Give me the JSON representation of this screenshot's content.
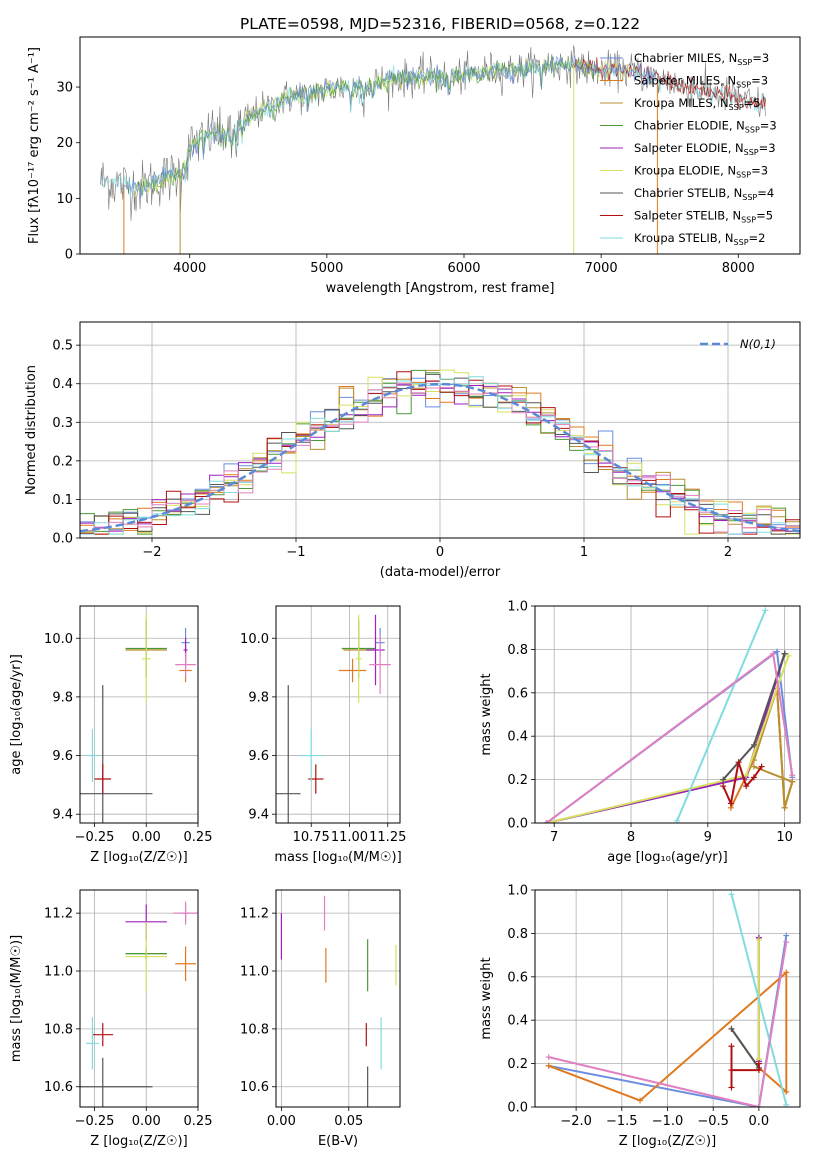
{
  "figure_title": "PLATE=0598, MJD=52316, FIBERID=0568, z=0.122",
  "colors": {
    "Chabrier MILES": "#6a8ee0",
    "Salpeter MILES": "#e07a20",
    "Kroupa MILES": "#b89030",
    "Chabrier ELODIE": "#4a9a3a",
    "Salpeter ELODIE": "#a020c0",
    "Kroupa ELODIE": "#d8e060",
    "Chabrier STELIB": "#555555",
    "Salpeter STELIB": "#b01010",
    "Kroupa STELIB": "#80dce0",
    "pink": "#e080c0",
    "gaussian": "#5a8ad8",
    "grid": "#b0b0b0"
  },
  "chart_data": [
    {
      "id": "spectrum",
      "type": "line",
      "xlabel": "wavelength [Angstrom, rest frame]",
      "ylabel": "Flux [f_λ10^-17 erg cm^-2 s^-1 A^-1]",
      "xlim": [
        3200,
        8450
      ],
      "ylim": [
        0,
        39
      ],
      "xticks": [
        4000,
        5000,
        6000,
        7000,
        8000
      ],
      "yticks": [
        0,
        10,
        20,
        30
      ],
      "grid": false,
      "legend_position": "top-right",
      "legend": [
        {
          "label": "Chabrier MILES",
          "nssp": "3"
        },
        {
          "label": "Salpeter MILES",
          "nssp": "3"
        },
        {
          "label": "Kroupa MILES",
          "nssp": "5"
        },
        {
          "label": "Chabrier ELODIE",
          "nssp": "3"
        },
        {
          "label": "Salpeter ELODIE",
          "nssp": "3"
        },
        {
          "label": "Kroupa ELODIE",
          "nssp": "3"
        },
        {
          "label": "Chabrier STELIB",
          "nssp": "4"
        },
        {
          "label": "Salpeter STELIB",
          "nssp": "5"
        },
        {
          "label": "Kroupa STELIB",
          "nssp": "2"
        }
      ],
      "continuum": [
        [
          3350,
          13.2
        ],
        [
          3500,
          12.5
        ],
        [
          3650,
          12
        ],
        [
          3800,
          13.5
        ],
        [
          3900,
          14
        ],
        [
          3950,
          16
        ],
        [
          4000,
          19
        ],
        [
          4100,
          21
        ],
        [
          4200,
          22
        ],
        [
          4300,
          21.5
        ],
        [
          4400,
          24
        ],
        [
          4500,
          25.5
        ],
        [
          4600,
          26.5
        ],
        [
          4700,
          28
        ],
        [
          4800,
          28.5
        ],
        [
          4900,
          29
        ],
        [
          5000,
          29.5
        ],
        [
          5100,
          30
        ],
        [
          5200,
          30
        ],
        [
          5300,
          30.5
        ],
        [
          5400,
          31
        ],
        [
          5500,
          31.5
        ],
        [
          5600,
          31.5
        ],
        [
          5700,
          32
        ],
        [
          5800,
          32
        ],
        [
          5900,
          31.5
        ],
        [
          6000,
          32
        ],
        [
          6100,
          32.5
        ],
        [
          6200,
          33
        ],
        [
          6300,
          33
        ],
        [
          6400,
          33
        ],
        [
          6500,
          33.5
        ],
        [
          6600,
          34
        ],
        [
          6700,
          34
        ],
        [
          6800,
          34
        ],
        [
          6900,
          33.5
        ],
        [
          7000,
          33
        ],
        [
          7100,
          33
        ],
        [
          7200,
          33
        ],
        [
          7300,
          32.5
        ],
        [
          7400,
          31.5
        ],
        [
          7500,
          31
        ],
        [
          7600,
          30
        ],
        [
          7700,
          29.5
        ],
        [
          7800,
          29
        ],
        [
          7900,
          28.5
        ],
        [
          8000,
          28
        ],
        [
          8100,
          27
        ],
        [
          8200,
          27
        ]
      ],
      "notes": "noisy observed spectrum with overplotted SSP model fits"
    },
    {
      "id": "residuals",
      "type": "line",
      "xlabel": "(data-model)/error",
      "ylabel": "Normed distribution",
      "xlim": [
        -2.5,
        2.5
      ],
      "ylim": [
        0,
        0.56
      ],
      "xticks": [
        -2,
        -1,
        0,
        1,
        2
      ],
      "yticks": [
        0.0,
        0.1,
        0.2,
        0.3,
        0.4,
        0.5
      ],
      "grid": true,
      "legend_position": "top-right",
      "legend": [
        {
          "label": "N(0,1)"
        }
      ],
      "series_style": "step histograms of normalized residuals, one per model",
      "gaussian": {
        "mean": 0,
        "sigma": 1
      }
    },
    {
      "id": "age_vs_Z",
      "type": "scatter",
      "xlabel": "Z [log10(Z/Z☉)]",
      "ylabel": "age  [log10(age/yr)]",
      "xlim": [
        -0.32,
        0.25
      ],
      "ylim": [
        9.37,
        10.11
      ],
      "xticks": [
        -0.25,
        0.0,
        0.25
      ],
      "yticks": [
        9.4,
        9.6,
        9.8,
        10.0
      ],
      "grid": true,
      "points": [
        {
          "model": "Chabrier MILES",
          "x": 0.19,
          "y": 9.985,
          "xerr": 0.02,
          "yerr": 0.05
        },
        {
          "model": "Salpeter MILES",
          "x": 0.19,
          "y": 9.89,
          "xerr": 0.03,
          "yerr": 0.04
        },
        {
          "model": "Kroupa MILES",
          "x": 0.0,
          "y": 9.96,
          "xerr": 0.1,
          "yerr": 0.01
        },
        {
          "model": "Chabrier ELODIE",
          "x": 0.0,
          "y": 9.965,
          "xerr": 0.1,
          "yerr": 0.1
        },
        {
          "model": "Salpeter ELODIE",
          "x": 0.19,
          "y": 9.96,
          "xerr": 0.01,
          "yerr": 0.04
        },
        {
          "model": "Kroupa ELODIE",
          "x": 0.0,
          "y": 9.93,
          "xerr": 0.02,
          "yerr": 0.15
        },
        {
          "model": "Chabrier STELIB",
          "x": -0.21,
          "y": 9.47,
          "xerr": 0.24,
          "yerr": 0.37
        },
        {
          "model": "Salpeter STELIB",
          "x": -0.21,
          "y": 9.52,
          "xerr": 0.04,
          "yerr": 0.05
        },
        {
          "model": "Kroupa STELIB",
          "x": -0.26,
          "y": 9.6,
          "xerr": 0.03,
          "yerr": 0.09
        },
        {
          "model": "pink",
          "x": 0.19,
          "y": 9.91,
          "xerr": 0.05,
          "yerr": 0.04
        }
      ]
    },
    {
      "id": "age_vs_mass",
      "type": "scatter",
      "xlabel": "mass [log10(M/M☉)]",
      "ylabel": "",
      "xlim": [
        10.52,
        11.33
      ],
      "ylim": [
        9.37,
        10.11
      ],
      "xticks": [
        10.75,
        11.0,
        11.25
      ],
      "yticks": [
        9.4,
        9.6,
        9.8,
        10.0
      ],
      "grid": true,
      "points": [
        {
          "model": "Chabrier MILES",
          "x": 11.2,
          "y": 9.985,
          "xerr": 0.03,
          "yerr": 0.05
        },
        {
          "model": "Salpeter MILES",
          "x": 11.02,
          "y": 9.89,
          "xerr": 0.09,
          "yerr": 0.04
        },
        {
          "model": "Kroupa MILES",
          "x": 11.06,
          "y": 9.96,
          "xerr": 0.1,
          "yerr": 0.01
        },
        {
          "model": "Chabrier ELODIE",
          "x": 11.06,
          "y": 9.965,
          "xerr": 0.11,
          "yerr": 0.1
        },
        {
          "model": "Salpeter ELODIE",
          "x": 11.17,
          "y": 9.96,
          "xerr": 0.06,
          "yerr": 0.12
        },
        {
          "model": "Kroupa ELODIE",
          "x": 11.06,
          "y": 9.93,
          "xerr": 0.02,
          "yerr": 0.15
        },
        {
          "model": "Chabrier STELIB",
          "x": 10.6,
          "y": 9.47,
          "xerr": 0.08,
          "yerr": 0.37
        },
        {
          "model": "Salpeter STELIB",
          "x": 10.78,
          "y": 9.52,
          "xerr": 0.05,
          "yerr": 0.05
        },
        {
          "model": "Kroupa STELIB",
          "x": 10.75,
          "y": 9.6,
          "xerr": 0.08,
          "yerr": 0.09
        },
        {
          "model": "pink",
          "x": 11.2,
          "y": 9.91,
          "xerr": 0.07,
          "yerr": 0.1
        }
      ]
    },
    {
      "id": "weight_vs_age",
      "type": "line",
      "xlabel": "age  [log10(age/yr)]",
      "ylabel": "mass weight",
      "xlim": [
        6.75,
        10.2
      ],
      "ylim": [
        0,
        1
      ],
      "xticks": [
        7,
        8,
        9,
        10
      ],
      "yticks": [
        0.0,
        0.2,
        0.4,
        0.6,
        0.8,
        1.0
      ],
      "grid": true,
      "series": [
        {
          "model": "Chabrier MILES",
          "points": [
            [
              6.9,
              0.0
            ],
            [
              9.9,
              0.79
            ],
            [
              10.1,
              0.21
            ]
          ]
        },
        {
          "model": "Salpeter MILES",
          "points": [
            [
              9.3,
              0.07
            ],
            [
              9.6,
              0.29
            ],
            [
              9.9,
              0.62
            ],
            [
              10.0,
              0.07
            ],
            [
              10.1,
              0.19
            ]
          ]
        },
        {
          "model": "Kroupa MILES",
          "points": [
            [
              9.6,
              0.29
            ],
            [
              9.9,
              0.62
            ],
            [
              10.0,
              0.07
            ],
            [
              10.1,
              0.19
            ],
            [
              9.6,
              0.26
            ]
          ]
        },
        {
          "model": "Chabrier ELODIE",
          "points": [
            [
              6.9,
              0.0
            ],
            [
              9.5,
              0.21
            ],
            [
              10.0,
              0.78
            ]
          ]
        },
        {
          "model": "Salpeter ELODIE",
          "points": [
            [
              6.9,
              0.0
            ],
            [
              9.5,
              0.21
            ],
            [
              10.0,
              0.78
            ]
          ]
        },
        {
          "model": "Kroupa ELODIE",
          "points": [
            [
              6.9,
              0.0
            ],
            [
              9.5,
              0.22
            ],
            [
              10.05,
              0.77
            ]
          ]
        },
        {
          "model": "Chabrier STELIB",
          "points": [
            [
              9.2,
              0.2
            ],
            [
              9.6,
              0.36
            ],
            [
              10.0,
              0.78
            ]
          ]
        },
        {
          "model": "Salpeter STELIB",
          "points": [
            [
              9.2,
              0.17
            ],
            [
              9.3,
              0.09
            ],
            [
              9.4,
              0.28
            ],
            [
              9.5,
              0.17
            ],
            [
              9.6,
              0.21
            ],
            [
              9.7,
              0.26
            ]
          ]
        },
        {
          "model": "Kroupa STELIB",
          "points": [
            [
              8.6,
              0.01
            ],
            [
              9.75,
              0.98
            ]
          ]
        },
        {
          "model": "pink",
          "points": [
            [
              6.9,
              0.0
            ],
            [
              9.85,
              0.78
            ],
            [
              10.1,
              0.22
            ]
          ]
        }
      ]
    },
    {
      "id": "mass_vs_Z",
      "type": "scatter",
      "xlabel": "Z [log10(Z/Z☉)]",
      "ylabel": "mass [log10(M/M☉)]",
      "xlim": [
        -0.32,
        0.25
      ],
      "ylim": [
        10.53,
        11.28
      ],
      "xticks": [
        -0.25,
        0.0,
        0.25
      ],
      "yticks": [
        10.6,
        10.8,
        11.0,
        11.2
      ],
      "grid": true,
      "points": [
        {
          "model": "Chabrier MILES",
          "x": 0.19,
          "y": 11.2,
          "xerr": 0.02,
          "yerr": 0.03
        },
        {
          "model": "Salpeter MILES",
          "x": 0.19,
          "y": 11.025,
          "xerr": 0.05,
          "yerr": 0.06
        },
        {
          "model": "Kroupa MILES",
          "x": 0.0,
          "y": 11.06,
          "xerr": 0.1,
          "yerr": 0.01
        },
        {
          "model": "Chabrier ELODIE",
          "x": 0.0,
          "y": 11.06,
          "xerr": 0.1,
          "yerr": 0.02
        },
        {
          "model": "Salpeter ELODIE",
          "x": 0.0,
          "y": 11.17,
          "xerr": 0.1,
          "yerr": 0.06
        },
        {
          "model": "Kroupa ELODIE",
          "x": 0.0,
          "y": 11.05,
          "xerr": 0.1,
          "yerr": 0.12
        },
        {
          "model": "Chabrier STELIB",
          "x": -0.21,
          "y": 10.6,
          "xerr": 0.24,
          "yerr": 0.1
        },
        {
          "model": "Salpeter STELIB",
          "x": -0.21,
          "y": 10.78,
          "xerr": 0.05,
          "yerr": 0.04
        },
        {
          "model": "Kroupa STELIB",
          "x": -0.26,
          "y": 10.75,
          "xerr": 0.03,
          "yerr": 0.09
        },
        {
          "model": "pink",
          "x": 0.19,
          "y": 11.2,
          "xerr": 0.06,
          "yerr": 0.04
        }
      ]
    },
    {
      "id": "mass_vs_EBV",
      "type": "scatter",
      "xlabel": "E(B-V)",
      "ylabel": "",
      "xlim": [
        -0.004,
        0.088
      ],
      "ylim": [
        10.53,
        11.28
      ],
      "xticks": [
        0.0,
        0.05
      ],
      "yticks": [
        10.6,
        10.8,
        11.0,
        11.2
      ],
      "grid": true,
      "points": [
        {
          "model": "Salpeter ELODIE",
          "x": 0.0,
          "y": 11.12,
          "xerr": 0,
          "yerr": 0.08
        },
        {
          "model": "Salpeter MILES",
          "x": 0.033,
          "y": 11.02,
          "xerr": 0,
          "yerr": 0.06
        },
        {
          "model": "pink",
          "x": 0.032,
          "y": 11.2,
          "xerr": 0,
          "yerr": 0.06
        },
        {
          "model": "Chabrier ELODIE",
          "x": 0.064,
          "y": 11.02,
          "xerr": 0,
          "yerr": 0.09
        },
        {
          "model": "Salpeter STELIB",
          "x": 0.063,
          "y": 10.78,
          "xerr": 0,
          "yerr": 0.04
        },
        {
          "model": "Chabrier STELIB",
          "x": 0.064,
          "y": 10.6,
          "xerr": 0,
          "yerr": 0.07
        },
        {
          "model": "Kroupa STELIB",
          "x": 0.074,
          "y": 10.75,
          "xerr": 0,
          "yerr": 0.09
        },
        {
          "model": "Kroupa ELODIE",
          "x": 0.085,
          "y": 11.02,
          "xerr": 0,
          "yerr": 0.07
        }
      ]
    },
    {
      "id": "weight_vs_Z",
      "type": "line",
      "xlabel": "Z [log10(Z/Z☉)]",
      "ylabel": "mass weight",
      "xlim": [
        -2.45,
        0.45
      ],
      "ylim": [
        0,
        1
      ],
      "xticks": [
        -2.0,
        -1.5,
        -1.0,
        -0.5,
        0.0
      ],
      "yticks": [
        0.0,
        0.2,
        0.4,
        0.6,
        0.8,
        1.0
      ],
      "grid": true,
      "series": [
        {
          "model": "Chabrier MILES",
          "points": [
            [
              -2.3,
              0.19
            ],
            [
              0.0,
              0.0
            ],
            [
              0.3,
              0.79
            ]
          ]
        },
        {
          "model": "Salpeter MILES",
          "points": [
            [
              -2.3,
              0.19
            ],
            [
              -1.3,
              0.03
            ],
            [
              0.3,
              0.62
            ],
            [
              0.3,
              0.07
            ],
            [
              0.0,
              0.18
            ],
            [
              -0.3,
              0.36
            ]
          ]
        },
        {
          "model": "Kroupa MILES",
          "points": [
            [
              0.0,
              0.22
            ],
            [
              0.0,
              0.78
            ]
          ]
        },
        {
          "model": "Chabrier ELODIE",
          "points": [
            [
              0.0,
              0.21
            ],
            [
              0.0,
              0.78
            ]
          ]
        },
        {
          "model": "Salpeter ELODIE",
          "points": [
            [
              0.0,
              0.21
            ],
            [
              0.0,
              0.78
            ]
          ]
        },
        {
          "model": "Kroupa ELODIE",
          "points": [
            [
              0.0,
              0.22
            ],
            [
              0.0,
              0.77
            ]
          ]
        },
        {
          "model": "Chabrier STELIB",
          "points": [
            [
              -0.3,
              0.36
            ],
            [
              0.0,
              0.18
            ]
          ]
        },
        {
          "model": "Salpeter STELIB",
          "points": [
            [
              -0.3,
              0.09
            ],
            [
              -0.3,
              0.28
            ],
            [
              -0.3,
              0.17
            ],
            [
              0.0,
              0.17
            ],
            [
              0.0,
              0.2
            ]
          ]
        },
        {
          "model": "Kroupa STELIB",
          "points": [
            [
              -0.3,
              0.98
            ],
            [
              0.3,
              0.01
            ]
          ]
        },
        {
          "model": "pink",
          "points": [
            [
              -2.3,
              0.23
            ],
            [
              0.0,
              0.0
            ],
            [
              0.3,
              0.76
            ]
          ]
        }
      ]
    }
  ]
}
